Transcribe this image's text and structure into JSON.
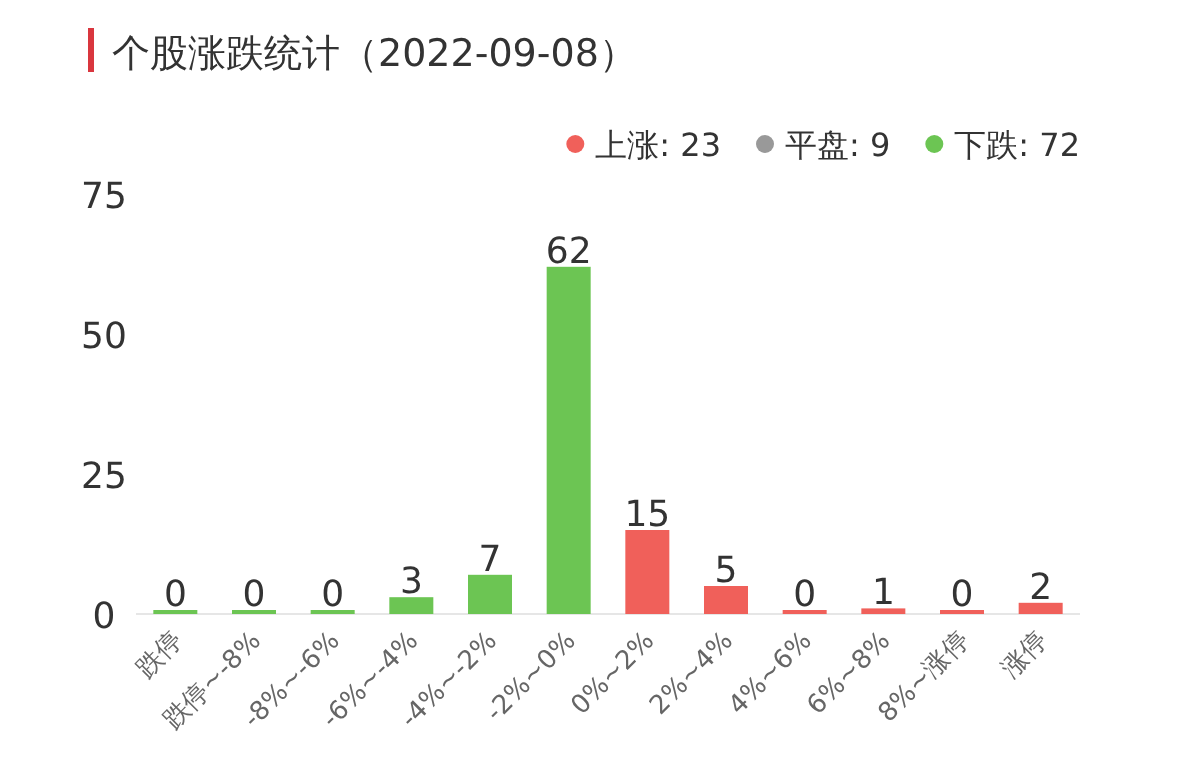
{
  "chart_data": {
    "type": "bar",
    "title": "个股涨跌统计（2022-09-08）",
    "data_labels": true,
    "legend": "top right",
    "grid": false,
    "categories": [
      "跌停",
      "跌停~-8%",
      "-8%~-6%",
      "-6%~-4%",
      "-4%~-2%",
      "-2%~0%",
      "0%~2%",
      "2%~4%",
      "4%~6%",
      "6%~8%",
      "8%~涨停",
      "涨停"
    ],
    "ylim": [
      0,
      75
    ],
    "yticks": [
      0,
      25,
      50,
      75
    ],
    "series": [
      {
        "name": "上涨: 23",
        "color": "#f0605a",
        "values": [
          null,
          null,
          null,
          null,
          null,
          null,
          15,
          5,
          0,
          1,
          0,
          2
        ]
      },
      {
        "name": "平盘: 9",
        "color": "#999999",
        "values": [
          null,
          null,
          null,
          null,
          null,
          null,
          null,
          null,
          null,
          null,
          null,
          null
        ]
      },
      {
        "name": "下跌: 72",
        "color": "#6cc553",
        "values": [
          0,
          0,
          0,
          3,
          7,
          62,
          null,
          null,
          null,
          null,
          null,
          null
        ]
      }
    ]
  }
}
